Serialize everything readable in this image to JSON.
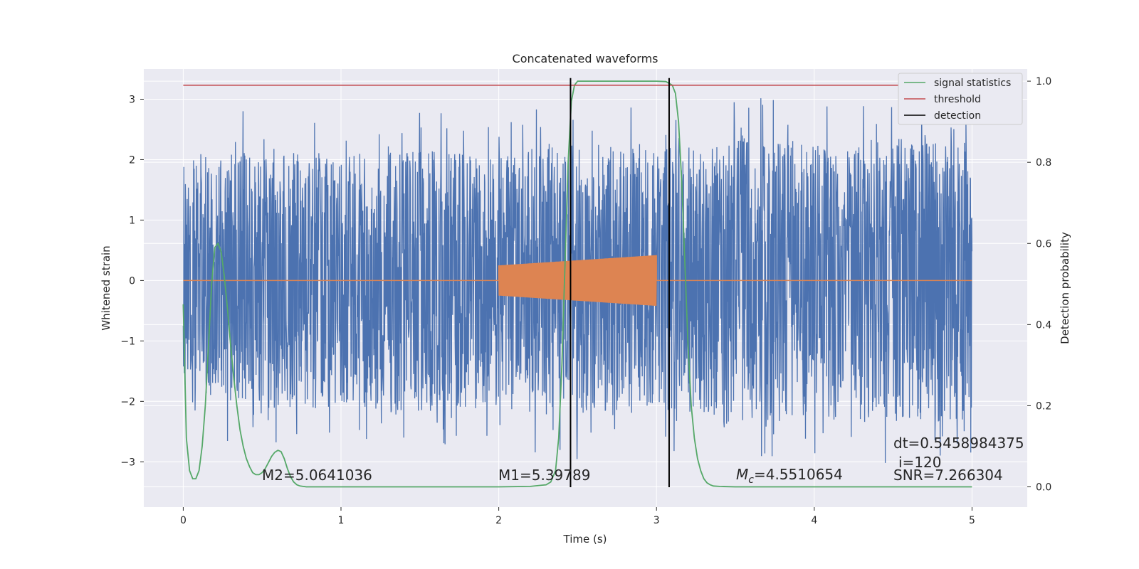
{
  "chart_data": {
    "type": "line",
    "title": "Concatenated waveforms",
    "xlabel": "Time (s)",
    "ylabel": "Whitened strain",
    "y2label": "Detection probability",
    "xlim": [
      -0.25,
      5.35
    ],
    "ylim": [
      -3.75,
      3.5
    ],
    "y2lim": [
      -0.05,
      1.03
    ],
    "x_ticks": [
      0,
      1,
      2,
      3,
      4,
      5
    ],
    "y_ticks": [
      -3,
      -2,
      -1,
      0,
      1,
      2,
      3
    ],
    "y2_ticks": [
      0.0,
      0.2,
      0.4,
      0.6,
      0.8,
      1.0
    ],
    "x_tick_labels": [
      "0",
      "1",
      "2",
      "3",
      "4",
      "5"
    ],
    "y_tick_labels": [
      "−3",
      "−2",
      "−1",
      "0",
      "1",
      "2",
      "3"
    ],
    "y2_tick_labels": [
      "0.0",
      "0.2",
      "0.4",
      "0.6",
      "0.8",
      "1.0"
    ],
    "grid": true,
    "legend_position": "top-right",
    "colors": {
      "strain": "#4c72b0",
      "injected": "#dd8452",
      "signal_statistics": "#55a868",
      "threshold": "#c44e52",
      "detection": "#000000",
      "background": "#eaeaf2",
      "grid": "#ffffff"
    },
    "series": [
      {
        "name": "signal statistics",
        "axis": "right",
        "x": [
          0.0,
          0.02,
          0.04,
          0.06,
          0.08,
          0.1,
          0.12,
          0.14,
          0.16,
          0.18,
          0.2,
          0.22,
          0.24,
          0.26,
          0.28,
          0.3,
          0.32,
          0.34,
          0.36,
          0.38,
          0.4,
          0.42,
          0.44,
          0.46,
          0.48,
          0.5,
          0.52,
          0.54,
          0.56,
          0.58,
          0.6,
          0.62,
          0.64,
          0.66,
          0.68,
          0.7,
          0.72,
          0.74,
          0.76,
          0.78,
          0.8,
          0.85,
          0.9,
          1.0,
          1.5,
          2.0,
          2.2,
          2.3,
          2.33,
          2.36,
          2.38,
          2.4,
          2.42,
          2.44,
          2.46,
          2.48,
          2.5,
          2.55,
          2.6,
          3.0,
          3.06,
          3.1,
          3.12,
          3.14,
          3.16,
          3.18,
          3.2,
          3.22,
          3.24,
          3.26,
          3.28,
          3.3,
          3.32,
          3.34,
          3.36,
          3.4,
          3.5,
          4.0,
          4.5,
          5.0
        ],
        "values": [
          0.45,
          0.12,
          0.04,
          0.02,
          0.02,
          0.04,
          0.1,
          0.2,
          0.35,
          0.5,
          0.59,
          0.6,
          0.58,
          0.52,
          0.44,
          0.35,
          0.27,
          0.2,
          0.14,
          0.1,
          0.07,
          0.05,
          0.035,
          0.03,
          0.03,
          0.035,
          0.045,
          0.06,
          0.075,
          0.085,
          0.09,
          0.087,
          0.07,
          0.045,
          0.025,
          0.012,
          0.005,
          0.002,
          0.001,
          0.0,
          0.0,
          0.0,
          0.0,
          0.0,
          0.0,
          0.0,
          0.001,
          0.005,
          0.012,
          0.04,
          0.12,
          0.3,
          0.55,
          0.8,
          0.95,
          0.99,
          1.0,
          1.0,
          1.0,
          1.0,
          0.999,
          0.99,
          0.97,
          0.9,
          0.75,
          0.55,
          0.35,
          0.2,
          0.12,
          0.07,
          0.04,
          0.02,
          0.01,
          0.005,
          0.002,
          0.001,
          0.0,
          0.0,
          0.0,
          0.0
        ]
      },
      {
        "name": "threshold",
        "axis": "right",
        "x": [
          0,
          5
        ],
        "values": [
          0.99,
          0.99
        ]
      },
      {
        "name": "detection",
        "axis": "left",
        "x": [
          2.455,
          3.08
        ],
        "values": [
          -3.42,
          3.35
        ]
      }
    ],
    "strain_envelope": {
      "x": [
        0,
        0.5,
        1.0,
        1.5,
        2.0,
        2.5,
        3.0,
        3.5,
        4.0,
        4.5,
        5.0
      ],
      "typical_high": [
        2.1,
        2.2,
        2.1,
        2.2,
        2.1,
        2.3,
        2.2,
        2.4,
        2.3,
        2.4,
        2.3
      ],
      "typical_low": [
        -2.0,
        -2.2,
        -2.1,
        -2.2,
        -2.1,
        -2.3,
        -2.2,
        -2.4,
        -2.3,
        -2.4,
        -2.3
      ]
    },
    "injected_waveform": {
      "t_start": 2.0,
      "t_end": 3.0,
      "amp_start": 0.25,
      "amp_end": 0.42
    },
    "annotations": {
      "m2": "M2=5.0641036",
      "m1": "M1=5.39789",
      "mc_symbol": "M",
      "mc_subscript": "c",
      "mc_value": "=4.5510654",
      "dt": "dt=0.5458984375",
      "i": "i=120",
      "snr": "SNR=7.266304"
    },
    "legend": [
      {
        "label": "signal statistics",
        "color": "#55a868"
      },
      {
        "label": "threshold",
        "color": "#c44e52"
      },
      {
        "label": "detection",
        "color": "#000000"
      }
    ]
  }
}
